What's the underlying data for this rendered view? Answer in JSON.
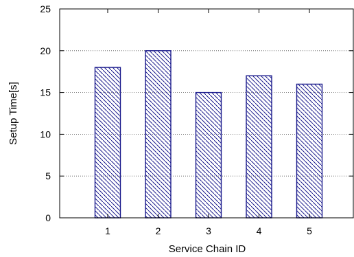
{
  "chart_data": {
    "type": "bar",
    "categories": [
      "1",
      "2",
      "3",
      "4",
      "5"
    ],
    "values": [
      18,
      20,
      15,
      17,
      16
    ],
    "title": "",
    "xlabel": "Service Chain ID",
    "ylabel": "Setup Time[s]",
    "ylim": [
      0,
      25
    ],
    "yticks": [
      0,
      5,
      10,
      15,
      20,
      25
    ],
    "grid": "horizontal dotted",
    "bar_fill": "diagonal hatch",
    "bar_color": "#1a1a8c"
  }
}
